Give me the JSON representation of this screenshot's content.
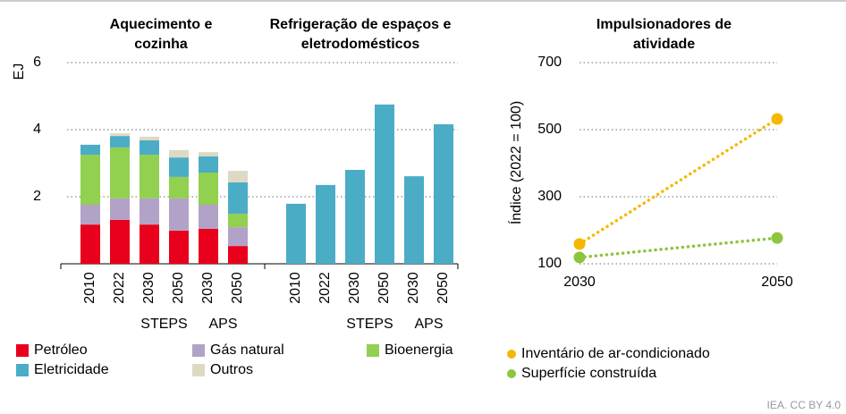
{
  "chart_data": [
    {
      "type": "bar",
      "stacked": true,
      "ylabel": "EJ",
      "ylim": [
        0,
        6
      ],
      "yticks": [
        2,
        4,
        6
      ],
      "grid": true,
      "panels": [
        {
          "title": "Aquecimento e cozinha",
          "categories": [
            "2010",
            "2022",
            "2030",
            "2050",
            "2030",
            "2050"
          ],
          "group_labels": [
            "STEPS",
            "APS"
          ],
          "series": [
            {
              "name": "Petróleo",
              "color": "#e8001c",
              "values": [
                1.17,
                1.31,
                1.17,
                0.99,
                1.04,
                0.53
              ]
            },
            {
              "name": "Gás natural",
              "color": "#b3a2c7",
              "values": [
                0.59,
                0.64,
                0.78,
                0.96,
                0.72,
                0.56
              ]
            },
            {
              "name": "Bioenergia",
              "color": "#92d050",
              "values": [
                1.49,
                1.52,
                1.3,
                0.64,
                0.96,
                0.4
              ]
            },
            {
              "name": "Eletricidade",
              "color": "#4bacc6",
              "values": [
                0.3,
                0.34,
                0.43,
                0.58,
                0.48,
                0.94
              ]
            },
            {
              "name": "Outros",
              "color": "#ddd9c3",
              "values": [
                0,
                0.08,
                0.11,
                0.22,
                0.13,
                0.34
              ]
            }
          ]
        },
        {
          "title": "Refrigeração de espaços e eletrodomésticos",
          "categories": [
            "2010",
            "2022",
            "2030",
            "2050",
            "2030",
            "2050"
          ],
          "group_labels": [
            "STEPS",
            "APS"
          ],
          "series": [
            {
              "name": "Eletricidade",
              "color": "#4bacc6",
              "values": [
                1.79,
                2.35,
                2.8,
                4.75,
                2.61,
                4.16
              ]
            }
          ]
        }
      ]
    },
    {
      "type": "line",
      "title": "Impulsionadores de atividade",
      "ylabel": "Índice (2022 = 100)",
      "x": [
        2030,
        2050
      ],
      "xlim": [
        2030,
        2050
      ],
      "xticks": [
        2030,
        2050
      ],
      "ylim": [
        100,
        700
      ],
      "yticks": [
        100,
        300,
        500,
        700
      ],
      "grid": true,
      "series": [
        {
          "name": "Inventário de ar-condicionado",
          "color": "#f5b800",
          "values": [
            159,
            532
          ]
        },
        {
          "name": "Superfície construída",
          "color": "#8cc63f",
          "values": [
            119,
            177
          ]
        }
      ]
    }
  ],
  "source": "IEA. CC BY 4.0"
}
